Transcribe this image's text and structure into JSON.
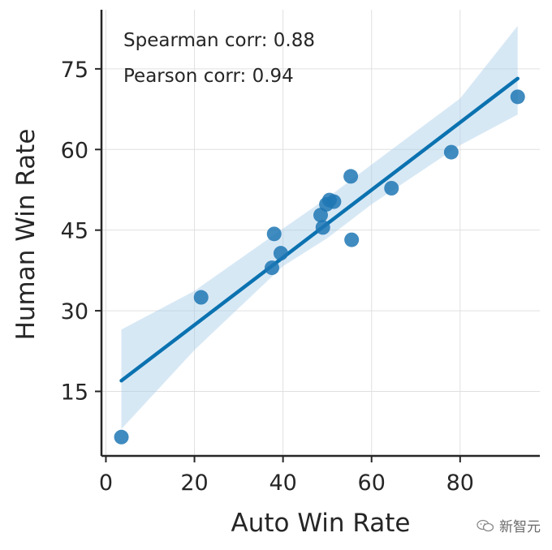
{
  "chart_data": {
    "type": "scatter",
    "xlabel": "Auto Win Rate",
    "ylabel": "Human Win Rate",
    "xlim": [
      -1,
      98
    ],
    "ylim": [
      3,
      86
    ],
    "xticks": [
      0,
      20,
      40,
      60,
      80
    ],
    "yticks": [
      15,
      30,
      45,
      60,
      75
    ],
    "grid": true,
    "annotations": [
      "Spearman corr: 0.88",
      "Pearson corr: 0.94"
    ],
    "points": [
      {
        "x": 3.5,
        "y": 6.5
      },
      {
        "x": 21.5,
        "y": 32.5
      },
      {
        "x": 37.5,
        "y": 38.0
      },
      {
        "x": 38.0,
        "y": 44.3
      },
      {
        "x": 39.5,
        "y": 40.7
      },
      {
        "x": 48.5,
        "y": 47.8
      },
      {
        "x": 49.0,
        "y": 45.5
      },
      {
        "x": 49.8,
        "y": 49.8
      },
      {
        "x": 50.5,
        "y": 50.6
      },
      {
        "x": 51.5,
        "y": 50.3
      },
      {
        "x": 55.3,
        "y": 55.0
      },
      {
        "x": 55.5,
        "y": 43.2
      },
      {
        "x": 64.5,
        "y": 52.8
      },
      {
        "x": 78.0,
        "y": 59.5
      },
      {
        "x": 93.0,
        "y": 69.8
      }
    ],
    "regression_line": {
      "x": [
        3.5,
        93.0
      ],
      "y": [
        17.0,
        73.2
      ]
    },
    "confidence_band": {
      "x": [
        3.5,
        20,
        40,
        50,
        60,
        80,
        93.0
      ],
      "upper": [
        26.5,
        33.7,
        45.3,
        51.0,
        57.2,
        69.5,
        83.0
      ],
      "lower": [
        8.0,
        22.7,
        38.3,
        43.5,
        49.8,
        60.8,
        66.5
      ]
    },
    "colors": {
      "points": "#1f77b4",
      "line": "#0b72b0",
      "band": "#a6cde8"
    }
  },
  "watermark": {
    "text": "新智元",
    "icon": "wechat-icon"
  }
}
